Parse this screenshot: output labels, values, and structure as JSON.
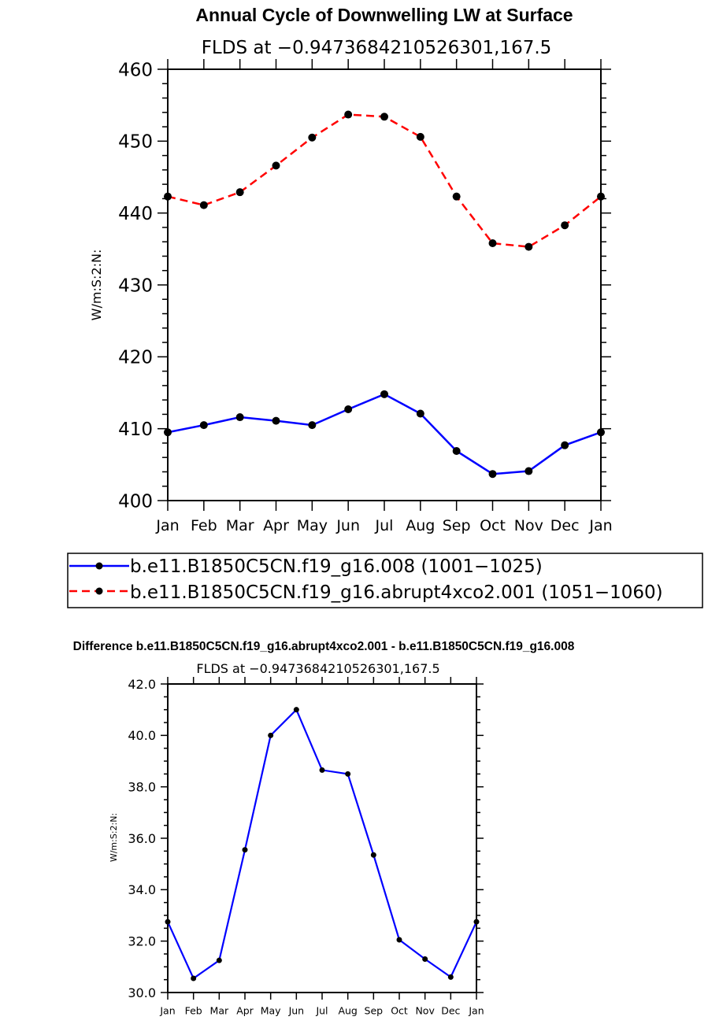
{
  "chart_data": [
    {
      "type": "line",
      "title": "Annual Cycle of Downwelling LW at Surface",
      "subtitle": "FLDS at −0.9473684210526301,167.5",
      "ylabel": "W/m:S:2:N:",
      "xlabel": "",
      "ylim": [
        400,
        460
      ],
      "yticks": [
        "400",
        "410",
        "420",
        "430",
        "440",
        "450",
        "460"
      ],
      "categories": [
        "Jan",
        "Feb",
        "Mar",
        "Apr",
        "May",
        "Jun",
        "Jul",
        "Aug",
        "Sep",
        "Oct",
        "Nov",
        "Dec",
        "Jan"
      ],
      "series": [
        {
          "name": "b.e11.B1850C5CN.f19_g16.008 (1001−1025)",
          "color": "#0000ff",
          "dash": "solid",
          "values": [
            409.5,
            410.5,
            411.6,
            411.1,
            410.5,
            412.7,
            414.8,
            412.1,
            406.9,
            403.7,
            404.1,
            407.7,
            409.5
          ]
        },
        {
          "name": "b.e11.B1850C5CN.f19_g16.abrupt4xco2.001 (1051−1060)",
          "color": "#ff0000",
          "dash": "dashed",
          "values": [
            442.3,
            441.1,
            442.9,
            446.6,
            450.5,
            453.7,
            453.4,
            450.6,
            442.3,
            435.8,
            435.3,
            438.3,
            442.3
          ]
        }
      ],
      "legend": "bottom"
    },
    {
      "type": "line",
      "title": "Difference b.e11.B1850C5CN.f19_g16.abrupt4xco2.001 - b.e11.B1850C5CN.f19_g16.008",
      "subtitle": "FLDS at −0.9473684210526301,167.5",
      "ylabel": "W/m:S:2:N:",
      "xlabel": "",
      "ylim": [
        30,
        42
      ],
      "yticks": [
        "30.0",
        "32.0",
        "34.0",
        "36.0",
        "38.0",
        "40.0",
        "42.0"
      ],
      "categories": [
        "Jan",
        "Feb",
        "Mar",
        "Apr",
        "May",
        "Jun",
        "Jul",
        "Aug",
        "Sep",
        "Oct",
        "Nov",
        "Dec",
        "Jan"
      ],
      "series": [
        {
          "name": "Difference",
          "color": "#0000ff",
          "dash": "solid",
          "values": [
            32.75,
            30.55,
            31.25,
            35.55,
            40.0,
            41.0,
            38.65,
            38.5,
            35.35,
            32.05,
            31.3,
            30.6,
            32.75
          ]
        }
      ]
    }
  ]
}
